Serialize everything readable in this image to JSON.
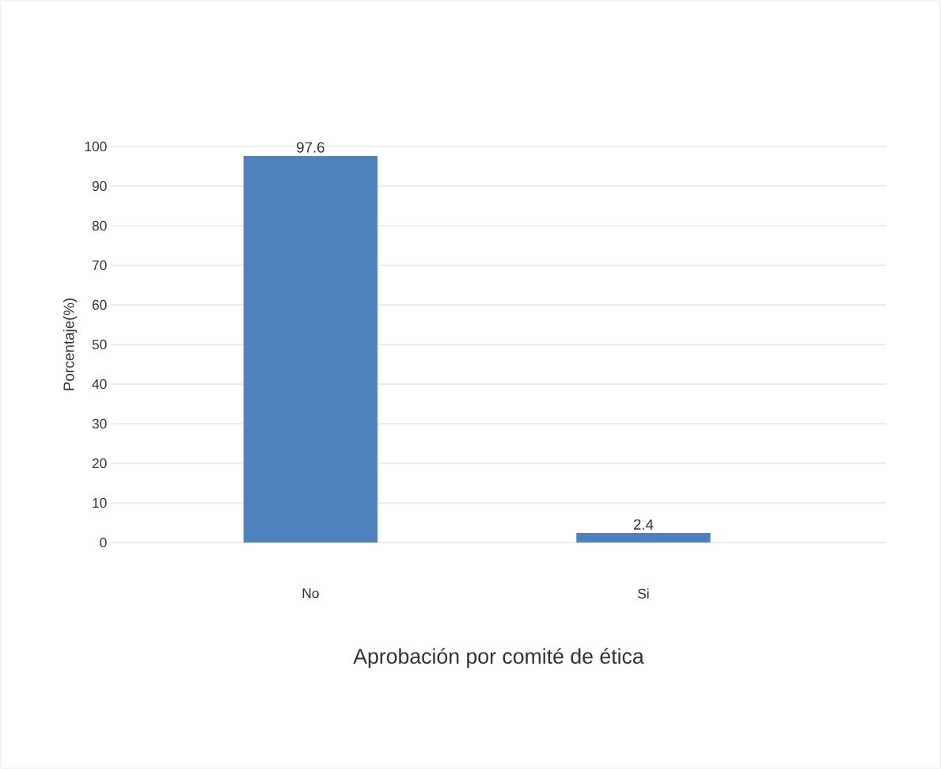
{
  "chart_data": {
    "type": "bar",
    "xlabel": "Aprobación por comité de ética",
    "ylabel": "Porcentaje(%)",
    "categories": [
      "No",
      "Si"
    ],
    "values": [
      97.6,
      2.4
    ],
    "color": "#4f81bd",
    "data_labels": true,
    "grid": "y",
    "ylim": [
      0,
      100
    ],
    "yticks": [
      0,
      10,
      20,
      30,
      40,
      50,
      60,
      70,
      80,
      90,
      100
    ]
  }
}
